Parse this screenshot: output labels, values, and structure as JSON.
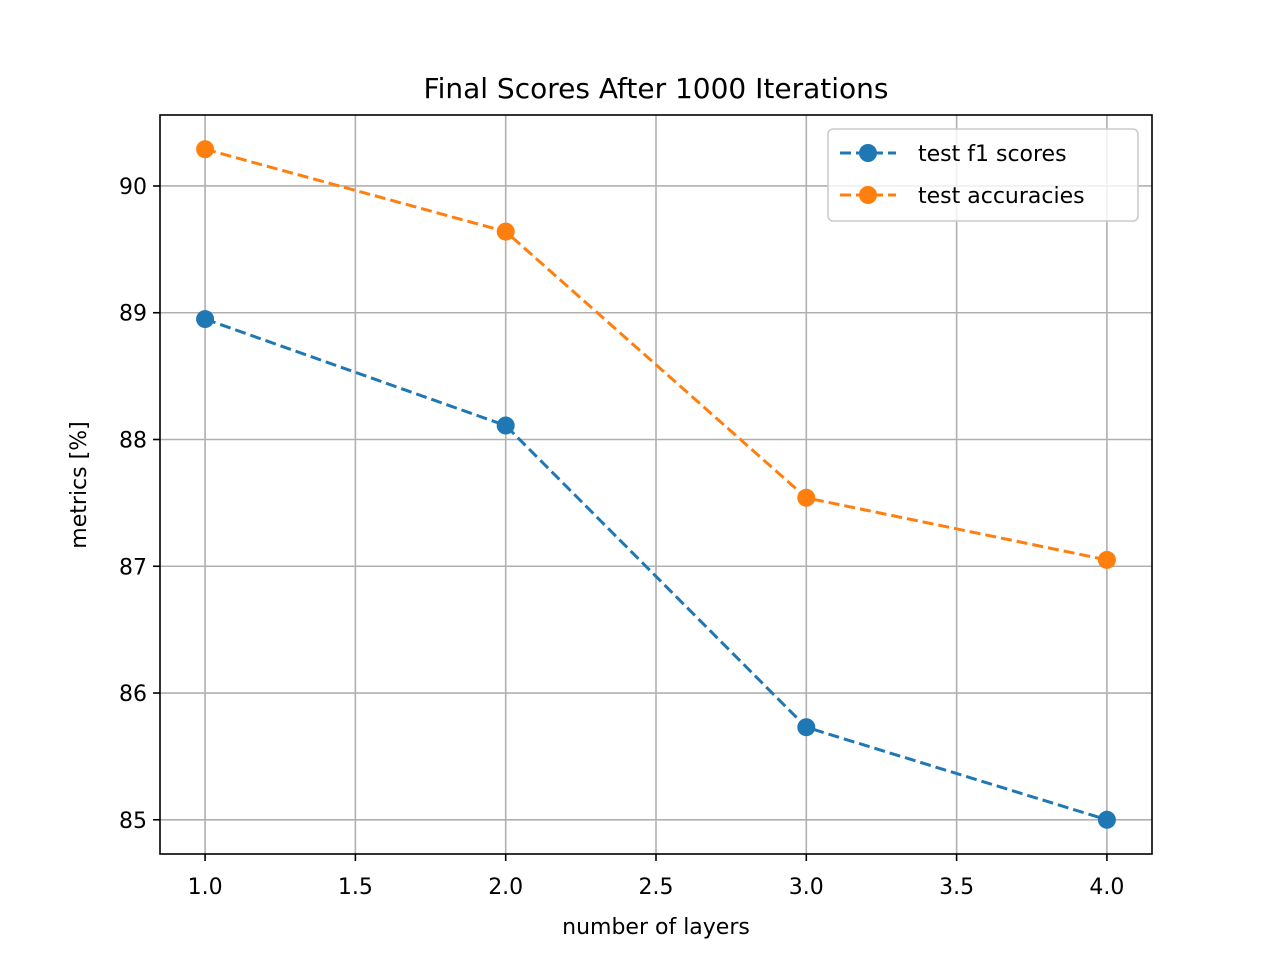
{
  "chart_data": {
    "type": "line",
    "title": "Final Scores After 1000 Iterations",
    "xlabel": "number of layers",
    "ylabel": "metrics [%]",
    "x": [
      1.0,
      2.0,
      3.0,
      4.0
    ],
    "xlim": [
      0.85,
      4.15
    ],
    "ylim": [
      84.73,
      90.56
    ],
    "x_ticks": [
      "1.0",
      "1.5",
      "2.0",
      "2.5",
      "3.0",
      "3.5",
      "4.0"
    ],
    "y_ticks": [
      "85",
      "86",
      "87",
      "88",
      "89",
      "90"
    ],
    "grid": true,
    "legend_position": "top-right",
    "series": [
      {
        "name": "test f1 scores",
        "color": "#1f77b4",
        "values": [
          88.95,
          88.11,
          85.73,
          85.0
        ],
        "line_style": "dashed",
        "marker": "circle"
      },
      {
        "name": "test accuracies",
        "color": "#ff7f0e",
        "values": [
          90.29,
          89.64,
          87.54,
          87.05
        ],
        "line_style": "dashed",
        "marker": "circle"
      }
    ]
  }
}
